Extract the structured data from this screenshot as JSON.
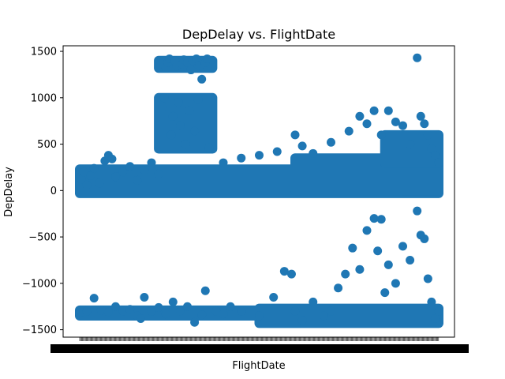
{
  "chart_data": {
    "type": "scatter",
    "title": "DepDelay vs. FlightDate",
    "xlabel": "FlightDate",
    "ylabel": "DepDelay",
    "xlim": [
      0,
      1
    ],
    "ylim": [
      -1580,
      1560
    ],
    "yticks": [
      -1500,
      -1000,
      -500,
      0,
      500,
      1000,
      1500
    ],
    "ytick_labels": [
      "−1500",
      "−1000",
      "−500",
      "0",
      "500",
      "1000",
      "1500"
    ],
    "x_tick_labels_note": "dense overlapping date labels, unreadable",
    "grid": false,
    "legend": "none",
    "marker_color": "#1f77b4",
    "points": [
      [
        0.005,
        120
      ],
      [
        0.012,
        200
      ],
      [
        0.02,
        60
      ],
      [
        0.03,
        160
      ],
      [
        0.04,
        240
      ],
      [
        0.055,
        80
      ],
      [
        0.07,
        320
      ],
      [
        0.08,
        380
      ],
      [
        0.09,
        340
      ],
      [
        0.1,
        150
      ],
      [
        0.12,
        200
      ],
      [
        0.14,
        260
      ],
      [
        0.16,
        110
      ],
      [
        0.18,
        220
      ],
      [
        0.2,
        300
      ],
      [
        0.22,
        180
      ],
      [
        0.23,
        900
      ],
      [
        0.235,
        1000
      ],
      [
        0.24,
        1320
      ],
      [
        0.245,
        1380
      ],
      [
        0.25,
        1420
      ],
      [
        0.255,
        600
      ],
      [
        0.26,
        800
      ],
      [
        0.265,
        1400
      ],
      [
        0.27,
        1340
      ],
      [
        0.275,
        950
      ],
      [
        0.28,
        700
      ],
      [
        0.285,
        1360
      ],
      [
        0.29,
        1410
      ],
      [
        0.295,
        500
      ],
      [
        0.3,
        1380
      ],
      [
        0.305,
        860
      ],
      [
        0.31,
        1300
      ],
      [
        0.315,
        1400
      ],
      [
        0.32,
        640
      ],
      [
        0.325,
        1420
      ],
      [
        0.33,
        980
      ],
      [
        0.335,
        1350
      ],
      [
        0.34,
        1200
      ],
      [
        0.345,
        1400
      ],
      [
        0.35,
        1380
      ],
      [
        0.355,
        1420
      ],
      [
        0.36,
        460
      ],
      [
        0.4,
        300
      ],
      [
        0.45,
        350
      ],
      [
        0.5,
        380
      ],
      [
        0.55,
        420
      ],
      [
        0.6,
        600
      ],
      [
        0.62,
        480
      ],
      [
        0.65,
        400
      ],
      [
        0.7,
        520
      ],
      [
        0.75,
        640
      ],
      [
        0.78,
        800
      ],
      [
        0.8,
        720
      ],
      [
        0.82,
        860
      ],
      [
        0.84,
        600
      ],
      [
        0.86,
        860
      ],
      [
        0.88,
        740
      ],
      [
        0.9,
        700
      ],
      [
        0.92,
        500
      ],
      [
        0.94,
        1430
      ],
      [
        0.95,
        800
      ],
      [
        0.96,
        720
      ],
      [
        0.97,
        600
      ],
      [
        0.98,
        450
      ],
      [
        0.99,
        380
      ],
      [
        1.0,
        300
      ],
      [
        0.005,
        -1310
      ],
      [
        0.02,
        -1300
      ],
      [
        0.04,
        -1160
      ],
      [
        0.06,
        -1290
      ],
      [
        0.08,
        -1310
      ],
      [
        0.1,
        -1250
      ],
      [
        0.12,
        -1300
      ],
      [
        0.14,
        -1280
      ],
      [
        0.16,
        -1350
      ],
      [
        0.17,
        -1380
      ],
      [
        0.18,
        -1150
      ],
      [
        0.2,
        -1300
      ],
      [
        0.22,
        -1260
      ],
      [
        0.24,
        -1330
      ],
      [
        0.26,
        -1200
      ],
      [
        0.28,
        -1300
      ],
      [
        0.3,
        -1250
      ],
      [
        0.32,
        -1420
      ],
      [
        0.34,
        -1340
      ],
      [
        0.35,
        -1080
      ],
      [
        0.38,
        -1300
      ],
      [
        0.4,
        -1330
      ],
      [
        0.42,
        -1250
      ],
      [
        0.45,
        -1300
      ],
      [
        0.5,
        -1350
      ],
      [
        0.54,
        -1150
      ],
      [
        0.57,
        -870
      ],
      [
        0.59,
        -900
      ],
      [
        0.6,
        -1300
      ],
      [
        0.62,
        -1400
      ],
      [
        0.65,
        -1200
      ],
      [
        0.68,
        -1350
      ],
      [
        0.7,
        -1300
      ],
      [
        0.72,
        -1050
      ],
      [
        0.74,
        -900
      ],
      [
        0.76,
        -620
      ],
      [
        0.78,
        -850
      ],
      [
        0.8,
        -430
      ],
      [
        0.82,
        -300
      ],
      [
        0.83,
        -650
      ],
      [
        0.84,
        -310
      ],
      [
        0.85,
        -1100
      ],
      [
        0.86,
        -800
      ],
      [
        0.88,
        -1000
      ],
      [
        0.9,
        -600
      ],
      [
        0.92,
        -750
      ],
      [
        0.94,
        -220
      ],
      [
        0.95,
        -480
      ],
      [
        0.96,
        -520
      ],
      [
        0.97,
        -950
      ],
      [
        0.98,
        -1200
      ],
      [
        0.99,
        -1380
      ],
      [
        1.0,
        -1300
      ]
    ]
  }
}
